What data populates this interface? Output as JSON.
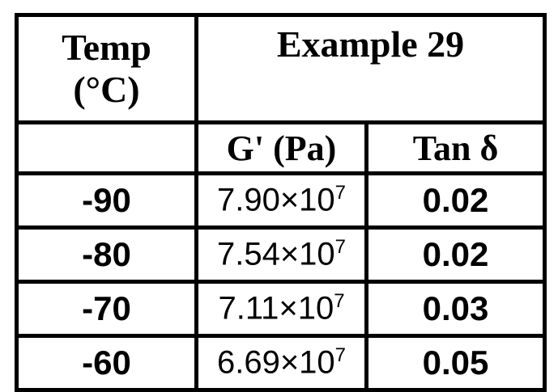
{
  "table": {
    "header": {
      "temp_line1": "Temp",
      "temp_line2": "(°C)",
      "example": "Example 29",
      "g_prime": "G' (Pa)",
      "tan_delta": "Tan δ"
    },
    "rows": [
      {
        "temp": "-90",
        "g_mantissa": "7.90×10",
        "g_exp": "7",
        "tan": "0.02"
      },
      {
        "temp": "-80",
        "g_mantissa": "7.54×10",
        "g_exp": "7",
        "tan": "0.02"
      },
      {
        "temp": "-70",
        "g_mantissa": "7.11×10",
        "g_exp": "7",
        "tan": "0.03"
      },
      {
        "temp": "-60",
        "g_mantissa": "6.69×10",
        "g_exp": "7",
        "tan": "0.05"
      }
    ]
  }
}
